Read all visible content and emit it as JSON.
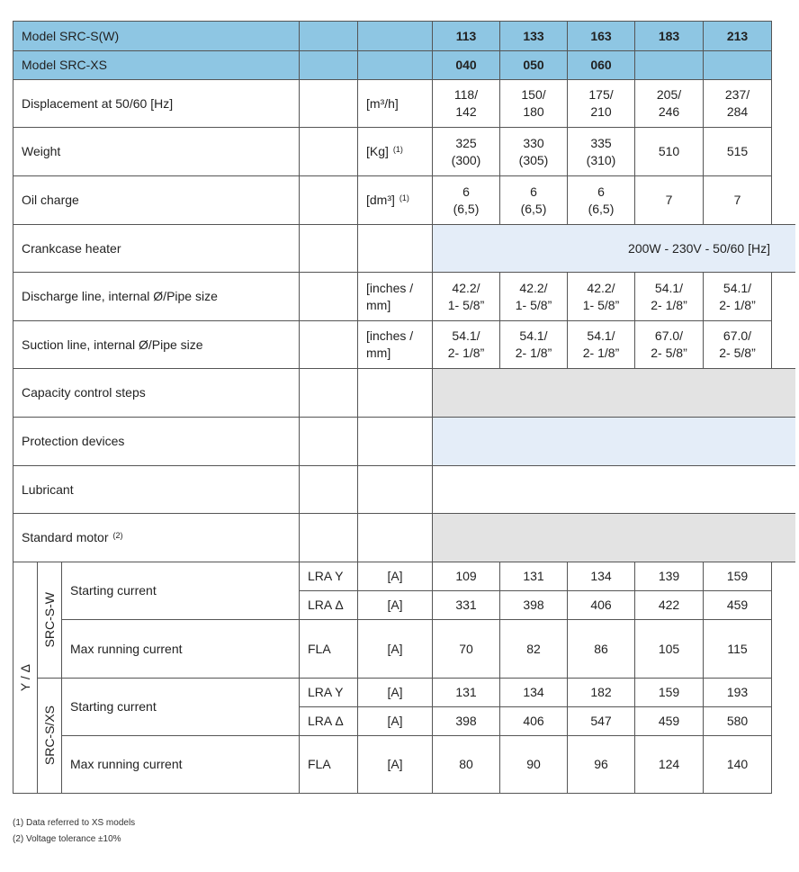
{
  "colors": {
    "header_blue": "#8ec6e3",
    "light_blue": "#e4edf8",
    "grey": "#e3e3e3"
  },
  "header_rows": [
    {
      "label": "Model  SRC-S(W)",
      "values": [
        "113",
        "133",
        "163",
        "183",
        "213"
      ]
    },
    {
      "label": "Model  SRC-XS",
      "values": [
        "040",
        "050",
        "060",
        "",
        ""
      ]
    }
  ],
  "spec_rows": [
    {
      "label": "Displacement at 50/60 [Hz]",
      "unit": "[m³/h]",
      "note": "",
      "values": [
        "118/\n142",
        "150/\n180",
        "175/\n210",
        "205/\n246",
        "237/\n284"
      ]
    },
    {
      "label": "Weight",
      "unit": "[Kg]",
      "note": "(1)",
      "values": [
        "325\n(300)",
        "330\n(305)",
        "335\n(310)",
        "510",
        "515"
      ]
    },
    {
      "label": "Oil charge",
      "unit": "[dm³]",
      "note": "(1)",
      "values": [
        "6\n(6,5)",
        "6\n(6,5)",
        "6\n(6,5)",
        "7",
        "7"
      ]
    }
  ],
  "crankcase": {
    "label": "Crankcase heater",
    "value": "200W - 230V - 50/60 [Hz]"
  },
  "line_rows": [
    {
      "label": "Discharge line, internal Ø/Pipe size",
      "unit": "[inches /\nmm]",
      "values": [
        "42.2/\n1- 5/8”",
        "42.2/\n1- 5/8”",
        "42.2/\n1- 5/8”",
        "54.1/\n2- 1/8”",
        "54.1/\n2- 1/8”"
      ]
    },
    {
      "label": "Suction line, internal Ø/Pipe size",
      "unit": "[inches /\nmm]",
      "values": [
        "54.1/\n2- 1/8”",
        "54.1/\n2- 1/8”",
        "54.1/\n2- 1/8”",
        "67.0/\n2- 5/8”",
        "67.0/\n2- 5/8”"
      ]
    }
  ],
  "shaded_rows": [
    {
      "label": "Capacity control steps",
      "note": "",
      "fill": "grey"
    },
    {
      "label": "Protection devices",
      "note": "",
      "fill": "light_blue"
    },
    {
      "label": "Lubricant",
      "note": "",
      "fill": "white"
    },
    {
      "label": "Standard motor",
      "note": "(2)",
      "fill": "grey"
    }
  ],
  "motor": {
    "group_label": "Y / Δ",
    "groups": [
      {
        "name": "SRC-S-W",
        "rows": [
          {
            "label": "Starting current",
            "sub": [
              {
                "code": "LRA Y",
                "unit": "[A]",
                "values": [
                  "109",
                  "131",
                  "134",
                  "139",
                  "159"
                ]
              },
              {
                "code": "LRA Δ",
                "unit": "[A]",
                "values": [
                  "331",
                  "398",
                  "406",
                  "422",
                  "459"
                ]
              }
            ]
          },
          {
            "label": "Max running current",
            "sub": [
              {
                "code": "FLA",
                "unit": "[A]",
                "values": [
                  "70",
                  "82",
                  "86",
                  "105",
                  "115"
                ]
              }
            ]
          }
        ]
      },
      {
        "name": "SRC-S/XS",
        "rows": [
          {
            "label": "Starting current",
            "sub": [
              {
                "code": "LRA Y",
                "unit": "[A]",
                "values": [
                  "131",
                  "134",
                  "182",
                  "159",
                  "193"
                ]
              },
              {
                "code": "LRA Δ",
                "unit": "[A]",
                "values": [
                  "398",
                  "406",
                  "547",
                  "459",
                  "580"
                ]
              }
            ]
          },
          {
            "label": "Max running current",
            "sub": [
              {
                "code": "FLA",
                "unit": "[A]",
                "values": [
                  "80",
                  "90",
                  "96",
                  "124",
                  "140"
                ]
              }
            ]
          }
        ]
      }
    ]
  },
  "footnotes": [
    "(1)  Data referred to XS models",
    "(2)  Voltage tolerance  ±10%"
  ]
}
